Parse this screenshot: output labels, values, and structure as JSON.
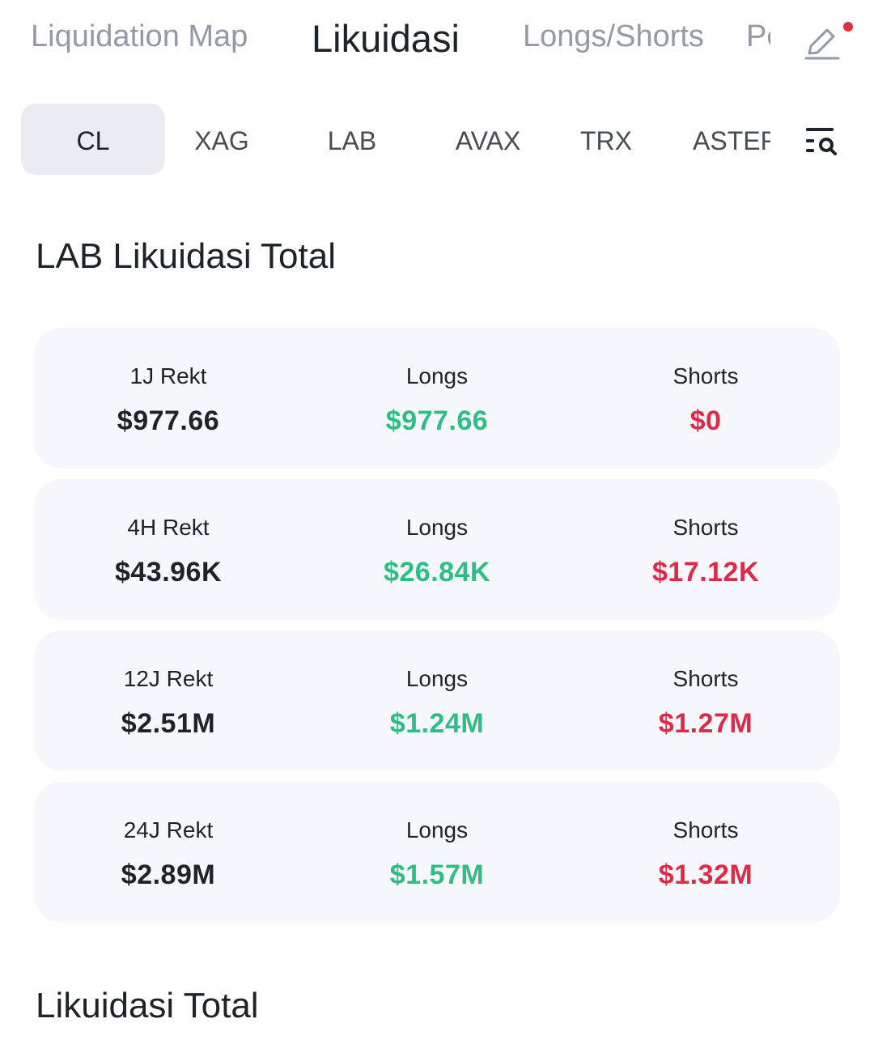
{
  "top_tabs": {
    "items": [
      "Liquidation Map",
      "Likuidasi",
      "Longs/Shorts"
    ],
    "clipped": "Po",
    "active_index": 1
  },
  "chips": {
    "items": [
      "CL",
      "XAG",
      "LAB",
      "AVAX",
      "TRX"
    ],
    "clipped": "ASTER",
    "active_index": 0
  },
  "section_title": "LAB Likuidasi Total",
  "cards": [
    {
      "rekt_label": "1J Rekt",
      "rekt_value": "$977.66",
      "longs_label": "Longs",
      "longs_value": "$977.66",
      "shorts_label": "Shorts",
      "shorts_value": "$0"
    },
    {
      "rekt_label": "4H Rekt",
      "rekt_value": "$43.96K",
      "longs_label": "Longs",
      "longs_value": "$26.84K",
      "shorts_label": "Shorts",
      "shorts_value": "$17.12K"
    },
    {
      "rekt_label": "12J Rekt",
      "rekt_value": "$2.51M",
      "longs_label": "Longs",
      "longs_value": "$1.24M",
      "shorts_label": "Shorts",
      "shorts_value": "$1.27M"
    },
    {
      "rekt_label": "24J Rekt",
      "rekt_value": "$2.89M",
      "longs_label": "Longs",
      "longs_value": "$1.57M",
      "shorts_label": "Shorts",
      "shorts_value": "$1.32M"
    }
  ],
  "section_title_2": "Likuidasi Total",
  "colors": {
    "long": "#2ebd85",
    "short": "#e0294a",
    "notification_dot": "#e0303e"
  },
  "icons": {
    "edit": "pencil-edit-icon",
    "filter": "list-search-icon"
  }
}
